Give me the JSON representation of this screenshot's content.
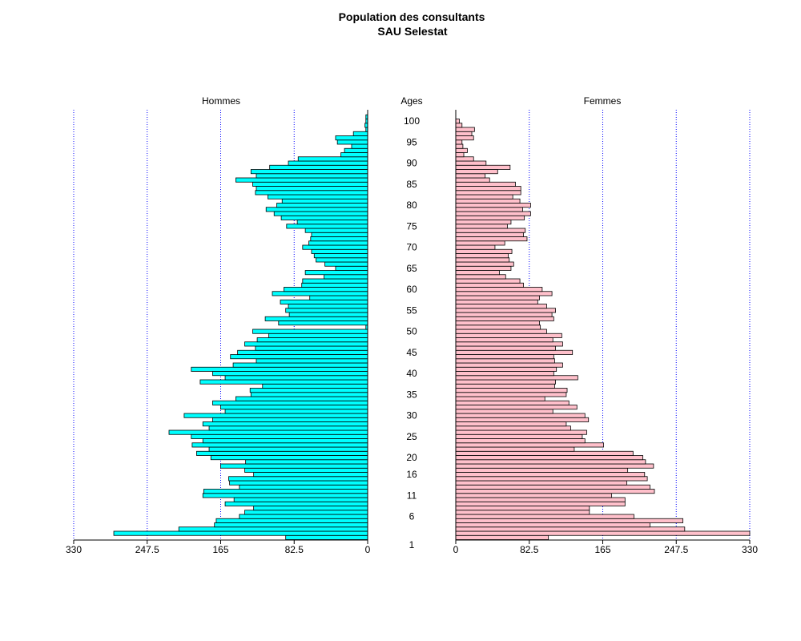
{
  "chart_data": {
    "type": "bar",
    "subtype": "population-pyramid",
    "title": "Population des consultants",
    "subtitle": "SAU Selestat",
    "center_label": "Ages",
    "colors": {
      "Hommes": "#00ffff",
      "Femmes": "#ffc0cb",
      "grid": "#0000ff"
    },
    "grid": true,
    "xlim": [
      0,
      330
    ],
    "x_ticks": [
      "0",
      "82.5",
      "165",
      "247.5",
      "330"
    ],
    "y_ticks": [
      1,
      6,
      11,
      16,
      20,
      25,
      30,
      35,
      40,
      45,
      50,
      55,
      60,
      65,
      70,
      75,
      80,
      85,
      90,
      95,
      100
    ],
    "ages": [
      1,
      2,
      3,
      4,
      5,
      6,
      7,
      8,
      9,
      10,
      11,
      12,
      13,
      14,
      15,
      16,
      17,
      18,
      19,
      20,
      21,
      22,
      23,
      24,
      25,
      26,
      27,
      28,
      29,
      30,
      31,
      32,
      33,
      34,
      35,
      36,
      37,
      38,
      39,
      40,
      41,
      42,
      43,
      44,
      45,
      46,
      47,
      48,
      49,
      50,
      51,
      52,
      53,
      54,
      55,
      56,
      57,
      58,
      59,
      60,
      61,
      62,
      63,
      64,
      65,
      66,
      67,
      68,
      69,
      70,
      71,
      72,
      73,
      74,
      75,
      76,
      77,
      78,
      79,
      80,
      81,
      82,
      83,
      84,
      85,
      86,
      87,
      88,
      89,
      90,
      91,
      92,
      93,
      94,
      95,
      96,
      97,
      98,
      99,
      100,
      101,
      102
    ],
    "series": [
      {
        "name": "Hommes",
        "values": [
          92,
          285,
          212,
          172,
          170,
          144,
          138,
          128,
          160,
          150,
          185,
          184,
          144,
          155,
          156,
          128,
          138,
          165,
          137,
          176,
          192,
          178,
          197,
          185,
          198,
          223,
          178,
          185,
          174,
          206,
          160,
          165,
          174,
          148,
          131,
          132,
          118,
          188,
          160,
          174,
          198,
          151,
          125,
          154,
          146,
          126,
          138,
          124,
          111,
          129,
          2,
          100,
          115,
          88,
          92,
          89,
          98,
          65,
          107,
          94,
          74,
          73,
          49,
          70,
          36,
          48,
          58,
          60,
          63,
          73,
          66,
          64,
          63,
          70,
          91,
          79,
          97,
          105,
          114,
          102,
          96,
          112,
          126,
          125,
          129,
          148,
          125,
          131,
          110,
          89,
          78,
          30,
          26,
          18,
          34,
          36,
          16,
          2,
          3,
          2,
          2,
          0
        ]
      },
      {
        "name": "Femmes",
        "values": [
          104,
          330,
          257,
          218,
          255,
          200,
          150,
          150,
          190,
          190,
          175,
          223,
          218,
          192,
          215,
          212,
          193,
          222,
          213,
          210,
          199,
          133,
          166,
          145,
          142,
          147,
          129,
          124,
          149,
          145,
          109,
          136,
          127,
          100,
          124,
          125,
          111,
          112,
          137,
          110,
          113,
          120,
          111,
          110,
          131,
          112,
          120,
          109,
          119,
          102,
          95,
          94,
          110,
          108,
          112,
          102,
          92,
          94,
          108,
          97,
          76,
          72,
          56,
          49,
          62,
          65,
          60,
          59,
          63,
          44,
          55,
          80,
          76,
          78,
          58,
          62,
          77,
          84,
          75,
          84,
          72,
          64,
          73,
          73,
          67,
          38,
          33,
          47,
          61,
          34,
          20,
          9,
          13,
          8,
          7,
          20,
          18,
          21,
          7,
          4,
          0,
          0
        ]
      }
    ]
  }
}
